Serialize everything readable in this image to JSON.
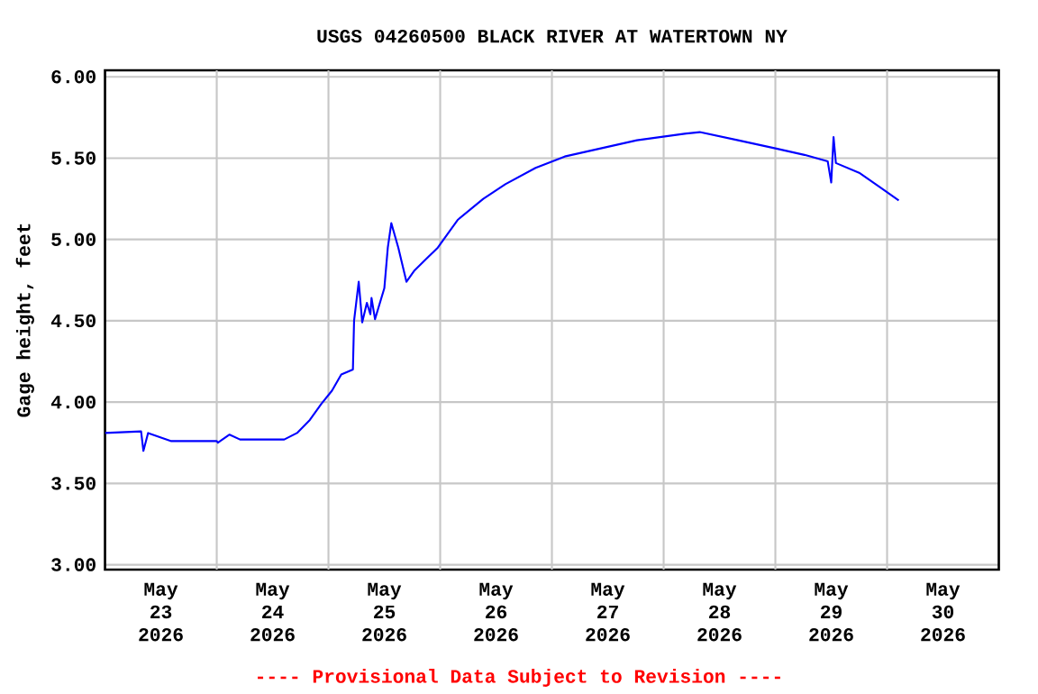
{
  "chart_data": {
    "type": "line",
    "title": "USGS 04260500 BLACK RIVER AT WATERTOWN NY",
    "ylabel": "Gage height, feet",
    "annotations": [
      "---- Provisional Data Subject to Revision ----"
    ],
    "x": [
      "2026-05-23T00:00",
      "2026-05-23T07:45",
      "2026-05-23T08:15",
      "2026-05-23T09:15",
      "2026-05-23T14:15",
      "2026-05-24T00:00",
      "2026-05-24T00:15",
      "2026-05-24T02:45",
      "2026-05-24T05:00",
      "2026-05-24T14:30",
      "2026-05-24T17:15",
      "2026-05-24T20:00",
      "2026-05-24T22:30",
      "2026-05-25T00:45",
      "2026-05-25T02:45",
      "2026-05-25T05:15",
      "2026-05-25T05:30",
      "2026-05-25T06:30",
      "2026-05-25T07:15",
      "2026-05-25T08:15",
      "2026-05-25T09:00",
      "2026-05-25T09:15",
      "2026-05-25T10:00",
      "2026-05-25T12:00",
      "2026-05-25T12:45",
      "2026-05-25T13:30",
      "2026-05-25T15:00",
      "2026-05-25T16:45",
      "2026-05-25T18:30",
      "2026-05-25T21:00",
      "2026-05-25T23:30",
      "2026-05-26T03:45",
      "2026-05-26T09:15",
      "2026-05-26T14:00",
      "2026-05-26T20:30",
      "2026-05-27T02:45",
      "2026-05-27T10:30",
      "2026-05-27T18:15",
      "2026-05-28T04:30",
      "2026-05-28T07:45",
      "2026-05-28T16:00",
      "2026-05-29T00:00",
      "2026-05-29T06:15",
      "2026-05-29T11:15",
      "2026-05-29T12:00",
      "2026-05-29T12:30",
      "2026-05-29T13:00",
      "2026-05-29T18:00",
      "2026-05-29T23:00",
      "2026-05-30T02:30"
    ],
    "series": [
      {
        "color": "#0000ff",
        "values": [
          3.81,
          3.82,
          3.7,
          3.81,
          3.76,
          3.76,
          3.75,
          3.8,
          3.77,
          3.77,
          3.81,
          3.89,
          3.99,
          4.07,
          4.17,
          4.2,
          4.5,
          4.74,
          4.49,
          4.61,
          4.54,
          4.64,
          4.51,
          4.7,
          4.95,
          5.1,
          4.95,
          4.74,
          4.81,
          4.88,
          4.95,
          5.12,
          5.25,
          5.34,
          5.44,
          5.51,
          5.56,
          5.61,
          5.65,
          5.66,
          5.61,
          5.56,
          5.52,
          5.48,
          5.35,
          5.63,
          5.47,
          5.41,
          5.31,
          5.24
        ]
      }
    ],
    "xlim": [
      "2026-05-23T00:00",
      "2026-05-31T00:00"
    ],
    "xticks": [
      {
        "value": "2026-05-23T12:00",
        "label": "May 23 2026"
      },
      {
        "value": "2026-05-24T12:00",
        "label": "May 24 2026"
      },
      {
        "value": "2026-05-25T12:00",
        "label": "May 25 2026"
      },
      {
        "value": "2026-05-26T12:00",
        "label": "May 26 2026"
      },
      {
        "value": "2026-05-27T12:00",
        "label": "May 27 2026"
      },
      {
        "value": "2026-05-28T12:00",
        "label": "May 28 2026"
      },
      {
        "value": "2026-05-29T12:00",
        "label": "May 29 2026"
      },
      {
        "value": "2026-05-30T12:00",
        "label": "May 30 2026"
      },
      {
        "value": "2026-05-24T00:00",
        "label": null
      },
      {
        "value": "2026-05-25T00:00",
        "label": null
      },
      {
        "value": "2026-05-26T00:00",
        "label": null
      },
      {
        "value": "2026-05-27T00:00",
        "label": null
      },
      {
        "value": "2026-05-28T00:00",
        "label": null
      },
      {
        "value": "2026-05-29T00:00",
        "label": null
      },
      {
        "value": "2026-05-30T00:00",
        "label": null
      }
    ],
    "ylim": [
      2.97,
      6.04
    ],
    "yticks": [
      {
        "value": 3.0,
        "label": "3.00"
      },
      {
        "value": 3.5,
        "label": "3.50"
      },
      {
        "value": 4.0,
        "label": "4.00"
      },
      {
        "value": 4.5,
        "label": "4.50"
      },
      {
        "value": 5.0,
        "label": "5.00"
      },
      {
        "value": 5.5,
        "label": "5.50"
      },
      {
        "value": 6.0,
        "label": "6.00"
      }
    ],
    "grid": true,
    "marker": "none",
    "line_style": "solid"
  }
}
